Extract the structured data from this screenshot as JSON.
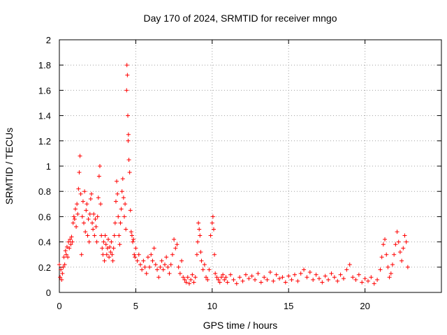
{
  "chart_data": {
    "type": "scatter",
    "title": "Day 170 of 2024, SRMTID for receiver mngo",
    "xlabel": "GPS time / hours",
    "ylabel": "SRMTID / TECUs",
    "xlim": [
      0,
      25
    ],
    "ylim": [
      0,
      2
    ],
    "xticks": [
      0,
      5,
      10,
      15,
      20
    ],
    "yticks": [
      0,
      0.2,
      0.4,
      0.6,
      0.8,
      1,
      1.2,
      1.4,
      1.6,
      1.8,
      2
    ],
    "ytick_labels": [
      "0",
      "0.2",
      "0.4",
      "0.6",
      "0.8",
      "1",
      "1.2",
      "1.4",
      "1.6",
      "1.8",
      "2"
    ],
    "grid": true,
    "marker": "+",
    "color": "#ff0000",
    "series": [
      {
        "name": "mngo",
        "points": [
          [
            0.0,
            0.22
          ],
          [
            0.05,
            0.12
          ],
          [
            0.1,
            0.18
          ],
          [
            0.15,
            0.1
          ],
          [
            0.2,
            0.15
          ],
          [
            0.25,
            0.2
          ],
          [
            0.3,
            0.28
          ],
          [
            0.35,
            0.22
          ],
          [
            0.4,
            0.33
          ],
          [
            0.45,
            0.3
          ],
          [
            0.5,
            0.36
          ],
          [
            0.55,
            0.28
          ],
          [
            0.6,
            0.4
          ],
          [
            0.65,
            0.35
          ],
          [
            0.7,
            0.42
          ],
          [
            0.75,
            0.38
          ],
          [
            0.8,
            0.44
          ],
          [
            0.85,
            0.4
          ],
          [
            0.9,
            0.55
          ],
          [
            0.95,
            0.6
          ],
          [
            1.0,
            0.58
          ],
          [
            1.05,
            0.66
          ],
          [
            1.1,
            0.52
          ],
          [
            1.15,
            0.7
          ],
          [
            1.2,
            0.62
          ],
          [
            1.25,
            0.82
          ],
          [
            1.3,
            0.95
          ],
          [
            1.35,
            1.08
          ],
          [
            1.4,
            0.78
          ],
          [
            1.45,
            0.3
          ],
          [
            1.5,
            0.6
          ],
          [
            1.55,
            0.72
          ],
          [
            1.6,
            0.55
          ],
          [
            1.65,
            0.8
          ],
          [
            1.7,
            0.48
          ],
          [
            1.75,
            0.65
          ],
          [
            1.8,
            0.7
          ],
          [
            1.85,
            0.45
          ],
          [
            1.9,
            0.58
          ],
          [
            1.95,
            0.4
          ],
          [
            2.0,
            0.62
          ],
          [
            2.05,
            0.74
          ],
          [
            2.1,
            0.78
          ],
          [
            2.15,
            0.55
          ],
          [
            2.2,
            0.5
          ],
          [
            2.25,
            0.62
          ],
          [
            2.3,
            0.45
          ],
          [
            2.35,
            0.58
          ],
          [
            2.4,
            0.52
          ],
          [
            2.45,
            0.4
          ],
          [
            2.5,
            0.6
          ],
          [
            2.55,
            0.75
          ],
          [
            2.6,
            0.92
          ],
          [
            2.65,
            1.0
          ],
          [
            2.7,
            0.7
          ],
          [
            2.75,
            0.45
          ],
          [
            2.8,
            0.35
          ],
          [
            2.85,
            0.3
          ],
          [
            2.9,
            0.4
          ],
          [
            2.95,
            0.25
          ],
          [
            3.0,
            0.45
          ],
          [
            3.05,
            0.38
          ],
          [
            3.1,
            0.3
          ],
          [
            3.15,
            0.35
          ],
          [
            3.2,
            0.42
          ],
          [
            3.25,
            0.28
          ],
          [
            3.3,
            0.36
          ],
          [
            3.35,
            0.32
          ],
          [
            3.4,
            0.4
          ],
          [
            3.45,
            0.3
          ],
          [
            3.5,
            0.25
          ],
          [
            3.55,
            0.35
          ],
          [
            3.6,
            0.45
          ],
          [
            3.65,
            0.55
          ],
          [
            3.7,
            0.72
          ],
          [
            3.75,
            0.88
          ],
          [
            3.8,
            0.78
          ],
          [
            3.85,
            0.6
          ],
          [
            3.9,
            0.45
          ],
          [
            3.95,
            0.38
          ],
          [
            4.0,
            0.55
          ],
          [
            4.05,
            0.66
          ],
          [
            4.1,
            0.8
          ],
          [
            4.15,
            0.9
          ],
          [
            4.2,
            0.75
          ],
          [
            4.25,
            0.6
          ],
          [
            4.3,
            0.7
          ],
          [
            4.35,
            0.5
          ],
          [
            4.4,
            1.6
          ],
          [
            4.42,
            1.8
          ],
          [
            4.45,
            1.72
          ],
          [
            4.48,
            1.4
          ],
          [
            4.5,
            1.2
          ],
          [
            4.52,
            1.25
          ],
          [
            4.55,
            1.05
          ],
          [
            4.6,
            0.95
          ],
          [
            4.65,
            0.65
          ],
          [
            4.7,
            0.48
          ],
          [
            4.75,
            0.45
          ],
          [
            4.8,
            0.4
          ],
          [
            4.85,
            0.42
          ],
          [
            4.9,
            0.3
          ],
          [
            4.95,
            0.28
          ],
          [
            5.0,
            0.35
          ],
          [
            5.1,
            0.25
          ],
          [
            5.2,
            0.3
          ],
          [
            5.3,
            0.22
          ],
          [
            5.4,
            0.18
          ],
          [
            5.5,
            0.25
          ],
          [
            5.6,
            0.2
          ],
          [
            5.7,
            0.15
          ],
          [
            5.8,
            0.28
          ],
          [
            5.9,
            0.2
          ],
          [
            6.0,
            0.3
          ],
          [
            6.1,
            0.25
          ],
          [
            6.2,
            0.35
          ],
          [
            6.3,
            0.22
          ],
          [
            6.4,
            0.18
          ],
          [
            6.5,
            0.12
          ],
          [
            6.6,
            0.2
          ],
          [
            6.7,
            0.25
          ],
          [
            6.8,
            0.18
          ],
          [
            6.9,
            0.22
          ],
          [
            7.0,
            0.28
          ],
          [
            7.1,
            0.2
          ],
          [
            7.2,
            0.15
          ],
          [
            7.3,
            0.22
          ],
          [
            7.4,
            0.3
          ],
          [
            7.5,
            0.42
          ],
          [
            7.6,
            0.35
          ],
          [
            7.7,
            0.38
          ],
          [
            7.8,
            0.2
          ],
          [
            7.9,
            0.15
          ],
          [
            8.0,
            0.25
          ],
          [
            8.1,
            0.12
          ],
          [
            8.2,
            0.1
          ],
          [
            8.3,
            0.08
          ],
          [
            8.4,
            0.12
          ],
          [
            8.5,
            0.07
          ],
          [
            8.6,
            0.1
          ],
          [
            8.7,
            0.14
          ],
          [
            8.8,
            0.08
          ],
          [
            8.9,
            0.12
          ],
          [
            9.0,
            0.3
          ],
          [
            9.05,
            0.4
          ],
          [
            9.1,
            0.55
          ],
          [
            9.15,
            0.5
          ],
          [
            9.2,
            0.45
          ],
          [
            9.25,
            0.32
          ],
          [
            9.3,
            0.25
          ],
          [
            9.4,
            0.18
          ],
          [
            9.5,
            0.22
          ],
          [
            9.6,
            0.12
          ],
          [
            9.7,
            0.1
          ],
          [
            9.8,
            0.18
          ],
          [
            9.9,
            0.45
          ],
          [
            10.0,
            0.55
          ],
          [
            10.05,
            0.6
          ],
          [
            10.1,
            0.5
          ],
          [
            10.15,
            0.3
          ],
          [
            10.2,
            0.15
          ],
          [
            10.3,
            0.12
          ],
          [
            10.4,
            0.1
          ],
          [
            10.5,
            0.08
          ],
          [
            10.6,
            0.12
          ],
          [
            10.7,
            0.14
          ],
          [
            10.8,
            0.1
          ],
          [
            10.9,
            0.12
          ],
          [
            11.0,
            0.08
          ],
          [
            11.2,
            0.14
          ],
          [
            11.4,
            0.1
          ],
          [
            11.6,
            0.07
          ],
          [
            11.8,
            0.12
          ],
          [
            12.0,
            0.09
          ],
          [
            12.2,
            0.14
          ],
          [
            12.4,
            0.11
          ],
          [
            12.6,
            0.13
          ],
          [
            12.8,
            0.1
          ],
          [
            13.0,
            0.15
          ],
          [
            13.2,
            0.08
          ],
          [
            13.4,
            0.12
          ],
          [
            13.6,
            0.1
          ],
          [
            13.8,
            0.16
          ],
          [
            14.0,
            0.09
          ],
          [
            14.2,
            0.14
          ],
          [
            14.4,
            0.11
          ],
          [
            14.6,
            0.12
          ],
          [
            14.8,
            0.08
          ],
          [
            15.0,
            0.13
          ],
          [
            15.2,
            0.1
          ],
          [
            15.4,
            0.14
          ],
          [
            15.6,
            0.09
          ],
          [
            15.8,
            0.15
          ],
          [
            16.0,
            0.18
          ],
          [
            16.2,
            0.12
          ],
          [
            16.4,
            0.16
          ],
          [
            16.6,
            0.1
          ],
          [
            16.8,
            0.14
          ],
          [
            17.0,
            0.11
          ],
          [
            17.2,
            0.08
          ],
          [
            17.4,
            0.13
          ],
          [
            17.6,
            0.1
          ],
          [
            17.8,
            0.15
          ],
          [
            18.0,
            0.12
          ],
          [
            18.2,
            0.09
          ],
          [
            18.4,
            0.14
          ],
          [
            18.6,
            0.11
          ],
          [
            18.8,
            0.18
          ],
          [
            19.0,
            0.22
          ],
          [
            19.2,
            0.12
          ],
          [
            19.4,
            0.1
          ],
          [
            19.6,
            0.14
          ],
          [
            19.8,
            0.08
          ],
          [
            20.0,
            0.11
          ],
          [
            20.2,
            0.09
          ],
          [
            20.4,
            0.12
          ],
          [
            20.6,
            0.07
          ],
          [
            20.8,
            0.1
          ],
          [
            21.0,
            0.18
          ],
          [
            21.1,
            0.28
          ],
          [
            21.2,
            0.38
          ],
          [
            21.3,
            0.42
          ],
          [
            21.4,
            0.3
          ],
          [
            21.5,
            0.2
          ],
          [
            21.6,
            0.12
          ],
          [
            21.7,
            0.15
          ],
          [
            21.8,
            0.22
          ],
          [
            21.9,
            0.3
          ],
          [
            22.0,
            0.38
          ],
          [
            22.1,
            0.48
          ],
          [
            22.2,
            0.4
          ],
          [
            22.3,
            0.32
          ],
          [
            22.4,
            0.25
          ],
          [
            22.5,
            0.35
          ],
          [
            22.6,
            0.45
          ],
          [
            22.7,
            0.4
          ],
          [
            22.8,
            0.2
          ]
        ]
      }
    ]
  }
}
